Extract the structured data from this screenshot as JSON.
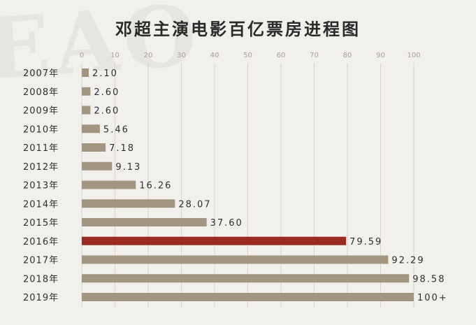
{
  "chart_data": {
    "type": "bar",
    "orientation": "horizontal",
    "title": "邓超主演电影百亿票房进程图",
    "categories": [
      "2007年",
      "2008年",
      "2009年",
      "2010年",
      "2011年",
      "2012年",
      "2013年",
      "2014年",
      "2015年",
      "2016年",
      "2017年",
      "2018年",
      "2019年"
    ],
    "values": [
      2.1,
      2.6,
      2.6,
      5.46,
      7.18,
      9.13,
      16.26,
      28.07,
      37.6,
      79.59,
      92.29,
      98.58,
      100
    ],
    "value_labels": [
      "2.10",
      "2.60",
      "2.60",
      "5.46",
      "7.18",
      "9.13",
      "16.26",
      "28.07",
      "37.60",
      "79.59",
      "92.29",
      "98.58",
      "100+"
    ],
    "x_ticks": [
      "0",
      "10",
      "20",
      "30",
      "40",
      "50",
      "60",
      "70",
      "80",
      "90",
      "100"
    ],
    "xlim": [
      0,
      100
    ],
    "grid": true,
    "xaxis_position": "top",
    "colors": {
      "bar": "#a39680",
      "highlight": "#9a2a22",
      "grid": "#d8d4cc",
      "background": "#f1f0ec"
    },
    "highlight_category": "2016年"
  }
}
